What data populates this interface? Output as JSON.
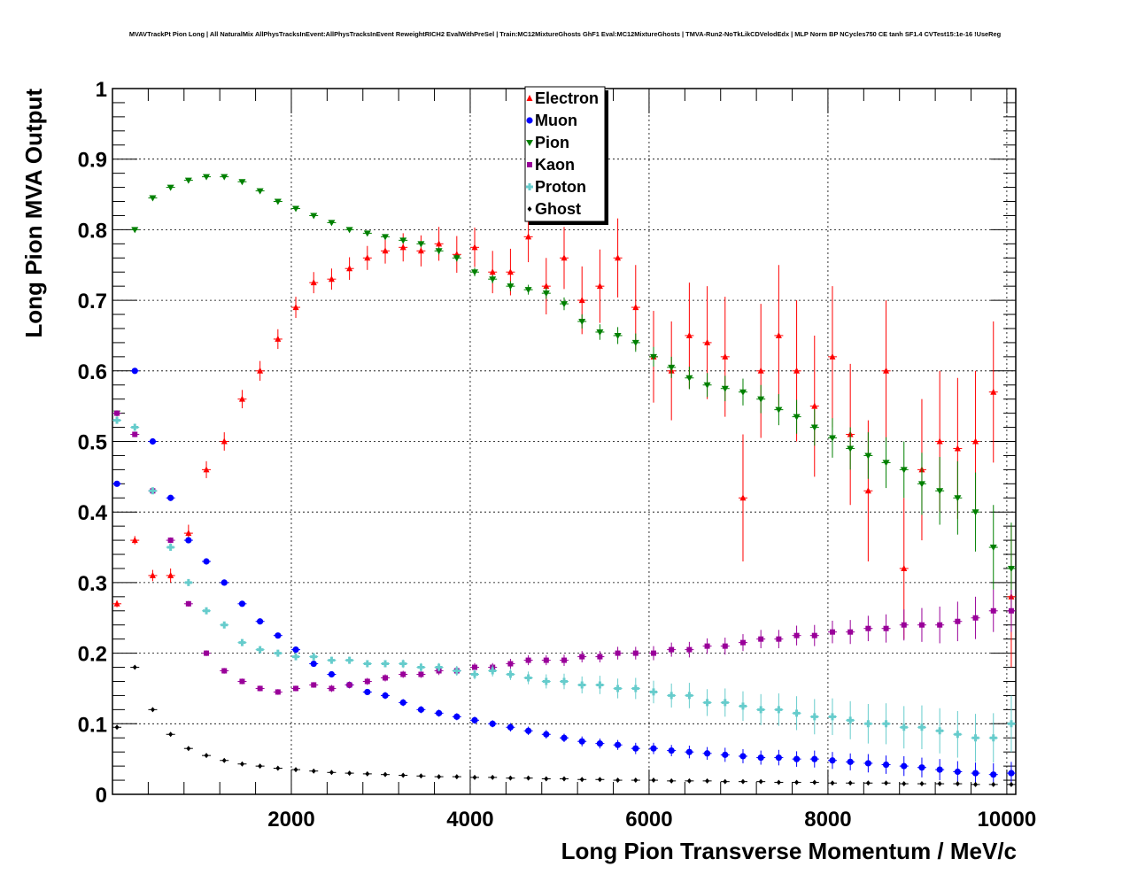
{
  "title": "MVAVTrackPt Pion Long | All NaturalMix AllPhysTracksInEvent:AllPhysTracksInEvent ReweightRICH2 EvalWithPreSel | Train:MC12MixtureGhosts GhF1 Eval:MC12MixtureGhosts | TMVA-Run2-NoTkLikCDVelodEdx | MLP Norm BP NCycles750 CE tanh SF1.4 CVTest15:1e-16 !UseReg",
  "chart_data": {
    "type": "scatter",
    "title": "MVAVTrackPt Pion Long | All NaturalMix AllPhysTracksInEvent:AllPhysTracksInEvent ReweightRICH2 EvalWithPreSel | Train:MC12MixtureGhosts GhF1 Eval:MC12MixtureGhosts | TMVA-Run2-NoTkLikCDVelodEdx | MLP Norm BP NCycles750 CE tanh SF1.4 CVTest15:1e-16 !UseReg",
    "xlabel": "Long Pion Transverse Momentum / MeV/c",
    "ylabel": "Long Pion MVA Output",
    "xlim": [
      0,
      10100
    ],
    "ylim": [
      0,
      1
    ],
    "x_ticks": [
      "2000",
      "4000",
      "6000",
      "8000",
      "10000"
    ],
    "y_ticks": [
      "0",
      "0.1",
      "0.2",
      "0.3",
      "0.4",
      "0.5",
      "0.6",
      "0.7",
      "0.8",
      "0.9",
      "1"
    ],
    "grid": true,
    "legend_position": "top-center",
    "series": [
      {
        "name": "Electron",
        "color": "#ff0000",
        "marker": "triangle-up",
        "x": [
          50,
          250,
          450,
          650,
          850,
          1050,
          1250,
          1450,
          1650,
          1850,
          2050,
          2250,
          2450,
          2650,
          2850,
          3050,
          3250,
          3450,
          3650,
          3850,
          4050,
          4250,
          4450,
          4650,
          4850,
          5050,
          5250,
          5450,
          5650,
          5850,
          6050,
          6250,
          6450,
          6650,
          6850,
          7050,
          7250,
          7450,
          7650,
          7850,
          8050,
          8250,
          8450,
          8650,
          8850,
          9050,
          9250,
          9450,
          9650,
          9850,
          10050
        ],
        "y": [
          0.27,
          0.36,
          0.31,
          0.31,
          0.37,
          0.46,
          0.5,
          0.56,
          0.6,
          0.645,
          0.69,
          0.725,
          0.73,
          0.745,
          0.76,
          0.77,
          0.775,
          0.77,
          0.78,
          0.765,
          0.775,
          0.74,
          0.74,
          0.79,
          0.72,
          0.76,
          0.7,
          0.72,
          0.76,
          0.69,
          0.62,
          0.6,
          0.65,
          0.64,
          0.62,
          0.42,
          0.6,
          0.65,
          0.6,
          0.55,
          0.62,
          0.51,
          0.43,
          0.6,
          0.32,
          0.46,
          0.5,
          0.49,
          0.5,
          0.57,
          0.28
        ],
        "yerr": [
          0.005,
          0.006,
          0.008,
          0.01,
          0.012,
          0.012,
          0.013,
          0.013,
          0.014,
          0.014,
          0.015,
          0.015,
          0.015,
          0.016,
          0.017,
          0.018,
          0.02,
          0.022,
          0.024,
          0.026,
          0.028,
          0.03,
          0.033,
          0.036,
          0.04,
          0.044,
          0.048,
          0.052,
          0.056,
          0.06,
          0.065,
          0.07,
          0.075,
          0.08,
          0.085,
          0.09,
          0.095,
          0.1,
          0.1,
          0.1,
          0.1,
          0.1,
          0.1,
          0.1,
          0.1,
          0.1,
          0.1,
          0.1,
          0.1,
          0.1,
          0.1
        ]
      },
      {
        "name": "Muon",
        "color": "#0000ff",
        "marker": "circle",
        "x": [
          50,
          250,
          450,
          650,
          850,
          1050,
          1250,
          1450,
          1650,
          1850,
          2050,
          2250,
          2450,
          2650,
          2850,
          3050,
          3250,
          3450,
          3650,
          3850,
          4050,
          4250,
          4450,
          4650,
          4850,
          5050,
          5250,
          5450,
          5650,
          5850,
          6050,
          6250,
          6450,
          6650,
          6850,
          7050,
          7250,
          7450,
          7650,
          7850,
          8050,
          8250,
          8450,
          8650,
          8850,
          9050,
          9250,
          9450,
          9650,
          9850,
          10050
        ],
        "y": [
          0.44,
          0.6,
          0.5,
          0.42,
          0.36,
          0.33,
          0.3,
          0.27,
          0.245,
          0.225,
          0.205,
          0.185,
          0.17,
          0.155,
          0.145,
          0.14,
          0.13,
          0.12,
          0.115,
          0.11,
          0.105,
          0.1,
          0.095,
          0.09,
          0.085,
          0.08,
          0.075,
          0.072,
          0.07,
          0.065,
          0.065,
          0.062,
          0.06,
          0.058,
          0.056,
          0.054,
          0.052,
          0.052,
          0.05,
          0.05,
          0.048,
          0.046,
          0.044,
          0.042,
          0.04,
          0.038,
          0.035,
          0.032,
          0.03,
          0.028,
          0.03
        ],
        "yerr": [
          0.004,
          0.004,
          0.004,
          0.004,
          0.004,
          0.004,
          0.004,
          0.004,
          0.004,
          0.004,
          0.004,
          0.004,
          0.004,
          0.004,
          0.004,
          0.005,
          0.005,
          0.005,
          0.005,
          0.005,
          0.005,
          0.005,
          0.006,
          0.006,
          0.006,
          0.006,
          0.007,
          0.007,
          0.007,
          0.008,
          0.008,
          0.008,
          0.009,
          0.009,
          0.01,
          0.01,
          0.01,
          0.011,
          0.011,
          0.012,
          0.012,
          0.012,
          0.013,
          0.013,
          0.014,
          0.014,
          0.015,
          0.015,
          0.015,
          0.016,
          0.016
        ]
      },
      {
        "name": "Pion",
        "color": "#008000",
        "marker": "triangle-down",
        "x": [
          50,
          250,
          450,
          650,
          850,
          1050,
          1250,
          1450,
          1650,
          1850,
          2050,
          2250,
          2450,
          2650,
          2850,
          3050,
          3250,
          3450,
          3650,
          3850,
          4050,
          4250,
          4450,
          4650,
          4850,
          5050,
          5250,
          5450,
          5650,
          5850,
          6050,
          6250,
          6450,
          6650,
          6850,
          7050,
          7250,
          7450,
          7650,
          7850,
          8050,
          8250,
          8450,
          8650,
          8850,
          9050,
          9250,
          9450,
          9650,
          9850,
          10050
        ],
        "y": [
          0.54,
          0.8,
          0.845,
          0.86,
          0.87,
          0.875,
          0.875,
          0.868,
          0.855,
          0.84,
          0.83,
          0.82,
          0.81,
          0.8,
          0.795,
          0.79,
          0.785,
          0.78,
          0.77,
          0.76,
          0.74,
          0.73,
          0.72,
          0.715,
          0.71,
          0.695,
          0.67,
          0.655,
          0.65,
          0.64,
          0.62,
          0.605,
          0.59,
          0.58,
          0.575,
          0.57,
          0.56,
          0.545,
          0.535,
          0.52,
          0.505,
          0.49,
          0.48,
          0.47,
          0.46,
          0.44,
          0.43,
          0.42,
          0.4,
          0.35,
          0.32
        ],
        "yerr": [
          0.004,
          0.003,
          0.003,
          0.002,
          0.002,
          0.002,
          0.002,
          0.002,
          0.002,
          0.002,
          0.002,
          0.002,
          0.003,
          0.003,
          0.003,
          0.003,
          0.004,
          0.004,
          0.005,
          0.005,
          0.006,
          0.006,
          0.007,
          0.007,
          0.008,
          0.009,
          0.01,
          0.011,
          0.012,
          0.013,
          0.014,
          0.015,
          0.016,
          0.017,
          0.018,
          0.019,
          0.02,
          0.022,
          0.024,
          0.026,
          0.028,
          0.03,
          0.033,
          0.036,
          0.04,
          0.044,
          0.048,
          0.052,
          0.056,
          0.06,
          0.065
        ]
      },
      {
        "name": "Kaon",
        "color": "#990099",
        "marker": "square",
        "x": [
          50,
          250,
          450,
          650,
          850,
          1050,
          1250,
          1450,
          1650,
          1850,
          2050,
          2250,
          2450,
          2650,
          2850,
          3050,
          3250,
          3450,
          3650,
          3850,
          4050,
          4250,
          4450,
          4650,
          4850,
          5050,
          5250,
          5450,
          5650,
          5850,
          6050,
          6250,
          6450,
          6650,
          6850,
          7050,
          7250,
          7450,
          7650,
          7850,
          8050,
          8250,
          8450,
          8650,
          8850,
          9050,
          9250,
          9450,
          9650,
          9850,
          10050
        ],
        "y": [
          0.54,
          0.51,
          0.43,
          0.36,
          0.27,
          0.2,
          0.175,
          0.16,
          0.15,
          0.145,
          0.15,
          0.155,
          0.15,
          0.155,
          0.16,
          0.165,
          0.17,
          0.17,
          0.175,
          0.175,
          0.18,
          0.18,
          0.185,
          0.19,
          0.19,
          0.19,
          0.195,
          0.195,
          0.2,
          0.2,
          0.2,
          0.205,
          0.205,
          0.21,
          0.21,
          0.215,
          0.22,
          0.22,
          0.225,
          0.225,
          0.23,
          0.23,
          0.235,
          0.235,
          0.24,
          0.24,
          0.24,
          0.245,
          0.25,
          0.26,
          0.26
        ],
        "yerr": [
          0.004,
          0.004,
          0.004,
          0.004,
          0.004,
          0.004,
          0.004,
          0.004,
          0.004,
          0.004,
          0.004,
          0.004,
          0.005,
          0.005,
          0.005,
          0.005,
          0.005,
          0.005,
          0.006,
          0.006,
          0.006,
          0.006,
          0.007,
          0.007,
          0.007,
          0.008,
          0.008,
          0.008,
          0.009,
          0.009,
          0.01,
          0.01,
          0.011,
          0.011,
          0.012,
          0.012,
          0.013,
          0.013,
          0.014,
          0.015,
          0.016,
          0.017,
          0.018,
          0.02,
          0.022,
          0.024,
          0.026,
          0.028,
          0.03,
          0.03,
          0.03
        ]
      },
      {
        "name": "Proton",
        "color": "#66cccc",
        "marker": "cross",
        "x": [
          50,
          250,
          450,
          650,
          850,
          1050,
          1250,
          1450,
          1650,
          1850,
          2050,
          2250,
          2450,
          2650,
          2850,
          3050,
          3250,
          3450,
          3650,
          3850,
          4050,
          4250,
          4450,
          4650,
          4850,
          5050,
          5250,
          5450,
          5650,
          5850,
          6050,
          6250,
          6450,
          6650,
          6850,
          7050,
          7250,
          7450,
          7650,
          7850,
          8050,
          8250,
          8450,
          8650,
          8850,
          9050,
          9250,
          9450,
          9650,
          9850,
          10050
        ],
        "y": [
          0.53,
          0.52,
          0.43,
          0.35,
          0.3,
          0.26,
          0.24,
          0.215,
          0.205,
          0.2,
          0.195,
          0.195,
          0.19,
          0.19,
          0.185,
          0.185,
          0.185,
          0.18,
          0.18,
          0.175,
          0.17,
          0.175,
          0.17,
          0.165,
          0.16,
          0.16,
          0.155,
          0.155,
          0.15,
          0.15,
          0.145,
          0.14,
          0.14,
          0.13,
          0.13,
          0.125,
          0.12,
          0.12,
          0.115,
          0.11,
          0.11,
          0.105,
          0.1,
          0.1,
          0.095,
          0.095,
          0.09,
          0.085,
          0.08,
          0.08,
          0.1
        ],
        "yerr": [
          0.004,
          0.004,
          0.004,
          0.004,
          0.004,
          0.004,
          0.004,
          0.004,
          0.004,
          0.004,
          0.004,
          0.005,
          0.005,
          0.005,
          0.005,
          0.005,
          0.006,
          0.006,
          0.006,
          0.007,
          0.007,
          0.008,
          0.008,
          0.009,
          0.01,
          0.011,
          0.012,
          0.013,
          0.014,
          0.015,
          0.016,
          0.017,
          0.018,
          0.019,
          0.02,
          0.021,
          0.022,
          0.023,
          0.024,
          0.025,
          0.026,
          0.027,
          0.028,
          0.029,
          0.03,
          0.031,
          0.032,
          0.033,
          0.034,
          0.035,
          0.04
        ]
      },
      {
        "name": "Ghost",
        "color": "#000000",
        "marker": "diamond",
        "x": [
          50,
          250,
          450,
          650,
          850,
          1050,
          1250,
          1450,
          1650,
          1850,
          2050,
          2250,
          2450,
          2650,
          2850,
          3050,
          3250,
          3450,
          3650,
          3850,
          4050,
          4250,
          4450,
          4650,
          4850,
          5050,
          5250,
          5450,
          5650,
          5850,
          6050,
          6250,
          6450,
          6650,
          6850,
          7050,
          7250,
          7450,
          7650,
          7850,
          8050,
          8250,
          8450,
          8650,
          8850,
          9050,
          9250,
          9450,
          9650,
          9850,
          10050
        ],
        "y": [
          0.095,
          0.18,
          0.12,
          0.085,
          0.065,
          0.055,
          0.048,
          0.043,
          0.04,
          0.037,
          0.035,
          0.033,
          0.031,
          0.03,
          0.029,
          0.028,
          0.027,
          0.026,
          0.025,
          0.025,
          0.024,
          0.024,
          0.023,
          0.023,
          0.022,
          0.022,
          0.021,
          0.021,
          0.02,
          0.02,
          0.02,
          0.019,
          0.019,
          0.019,
          0.018,
          0.018,
          0.018,
          0.017,
          0.017,
          0.017,
          0.016,
          0.016,
          0.016,
          0.016,
          0.015,
          0.015,
          0.015,
          0.015,
          0.014,
          0.014,
          0.014
        ],
        "yerr": [
          0.002,
          0.002,
          0.002,
          0.002,
          0.002,
          0.002,
          0.002,
          0.002,
          0.002,
          0.002,
          0.002,
          0.002,
          0.002,
          0.002,
          0.002,
          0.002,
          0.002,
          0.002,
          0.002,
          0.002,
          0.002,
          0.002,
          0.002,
          0.002,
          0.002,
          0.002,
          0.002,
          0.002,
          0.002,
          0.002,
          0.002,
          0.002,
          0.002,
          0.002,
          0.002,
          0.002,
          0.002,
          0.002,
          0.002,
          0.002,
          0.002,
          0.002,
          0.002,
          0.002,
          0.002,
          0.002,
          0.002,
          0.002,
          0.002,
          0.002,
          0.002
        ]
      }
    ]
  }
}
